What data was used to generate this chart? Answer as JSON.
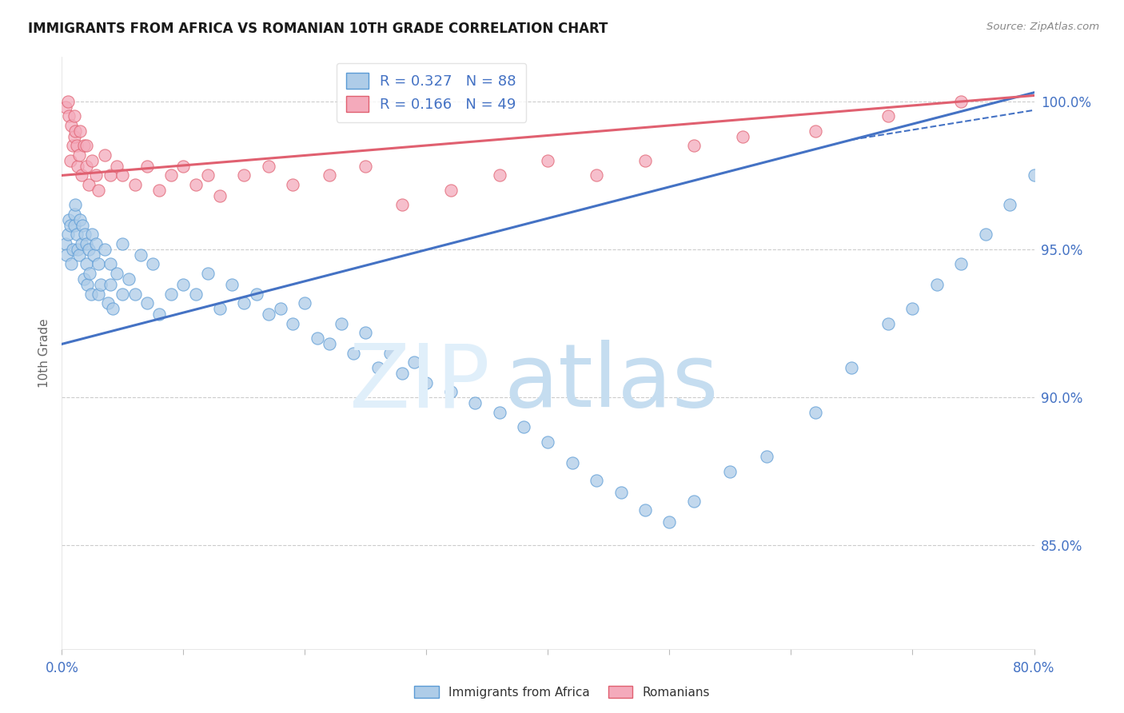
{
  "title": "IMMIGRANTS FROM AFRICA VS ROMANIAN 10TH GRADE CORRELATION CHART",
  "source": "Source: ZipAtlas.com",
  "ylabel": "10th Grade",
  "xlim": [
    0.0,
    80.0
  ],
  "ylim": [
    81.5,
    101.5
  ],
  "yticks": [
    85.0,
    90.0,
    95.0,
    100.0
  ],
  "ytick_labels": [
    "85.0%",
    "90.0%",
    "95.0%",
    "100.0%"
  ],
  "xticks": [
    0.0,
    10.0,
    20.0,
    30.0,
    40.0,
    50.0,
    60.0,
    70.0,
    80.0
  ],
  "xtick_labels": [
    "0.0%",
    "",
    "",
    "",
    "",
    "",
    "",
    "",
    "80.0%"
  ],
  "legend_label1": "Immigrants from Africa",
  "legend_label2": "Romanians",
  "r1": 0.327,
  "n1": 88,
  "r2": 0.166,
  "n2": 49,
  "color_africa_fill": "#AECCE8",
  "color_africa_edge": "#5B9BD5",
  "color_romania_fill": "#F4AABB",
  "color_romania_edge": "#E06070",
  "color_africa_line": "#4472C4",
  "color_romania_line": "#E06070",
  "color_axis_labels": "#4472C4",
  "africa_trend_x0": 0.0,
  "africa_trend_y0": 91.8,
  "africa_trend_x1": 80.0,
  "africa_trend_y1": 100.3,
  "romania_trend_x0": 0.0,
  "romania_trend_y0": 97.5,
  "romania_trend_x1": 80.0,
  "romania_trend_y1": 100.2,
  "africa_scatter_x": [
    0.3,
    0.4,
    0.5,
    0.6,
    0.7,
    0.8,
    0.9,
    1.0,
    1.0,
    1.1,
    1.2,
    1.3,
    1.4,
    1.5,
    1.6,
    1.7,
    1.8,
    1.9,
    2.0,
    2.0,
    2.1,
    2.2,
    2.3,
    2.4,
    2.5,
    2.6,
    2.8,
    3.0,
    3.0,
    3.2,
    3.5,
    3.8,
    4.0,
    4.0,
    4.2,
    4.5,
    5.0,
    5.0,
    5.5,
    6.0,
    6.5,
    7.0,
    7.5,
    8.0,
    9.0,
    10.0,
    11.0,
    12.0,
    13.0,
    14.0,
    15.0,
    16.0,
    17.0,
    18.0,
    19.0,
    20.0,
    21.0,
    22.0,
    23.0,
    24.0,
    25.0,
    26.0,
    27.0,
    28.0,
    29.0,
    30.0,
    32.0,
    34.0,
    36.0,
    38.0,
    40.0,
    42.0,
    44.0,
    46.0,
    48.0,
    50.0,
    52.0,
    55.0,
    58.0,
    62.0,
    65.0,
    68.0,
    70.0,
    72.0,
    74.0,
    76.0,
    78.0,
    80.0
  ],
  "africa_scatter_y": [
    95.2,
    94.8,
    95.5,
    96.0,
    95.8,
    94.5,
    95.0,
    96.2,
    95.8,
    96.5,
    95.5,
    95.0,
    94.8,
    96.0,
    95.2,
    95.8,
    94.0,
    95.5,
    95.2,
    94.5,
    93.8,
    95.0,
    94.2,
    93.5,
    95.5,
    94.8,
    95.2,
    93.5,
    94.5,
    93.8,
    95.0,
    93.2,
    93.8,
    94.5,
    93.0,
    94.2,
    93.5,
    95.2,
    94.0,
    93.5,
    94.8,
    93.2,
    94.5,
    92.8,
    93.5,
    93.8,
    93.5,
    94.2,
    93.0,
    93.8,
    93.2,
    93.5,
    92.8,
    93.0,
    92.5,
    93.2,
    92.0,
    91.8,
    92.5,
    91.5,
    92.2,
    91.0,
    91.5,
    90.8,
    91.2,
    90.5,
    90.2,
    89.8,
    89.5,
    89.0,
    88.5,
    87.8,
    87.2,
    86.8,
    86.2,
    85.8,
    86.5,
    87.5,
    88.0,
    89.5,
    91.0,
    92.5,
    93.0,
    93.8,
    94.5,
    95.5,
    96.5,
    97.5
  ],
  "romania_scatter_x": [
    0.3,
    0.5,
    0.6,
    0.7,
    0.8,
    0.9,
    1.0,
    1.0,
    1.1,
    1.2,
    1.3,
    1.4,
    1.5,
    1.6,
    1.8,
    2.0,
    2.0,
    2.2,
    2.5,
    2.8,
    3.0,
    3.5,
    4.0,
    4.5,
    5.0,
    6.0,
    7.0,
    8.0,
    9.0,
    10.0,
    11.0,
    12.0,
    13.0,
    15.0,
    17.0,
    19.0,
    22.0,
    25.0,
    28.0,
    32.0,
    36.0,
    40.0,
    44.0,
    48.0,
    52.0,
    56.0,
    62.0,
    68.0,
    74.0
  ],
  "romania_scatter_y": [
    99.8,
    100.0,
    99.5,
    98.0,
    99.2,
    98.5,
    99.5,
    98.8,
    99.0,
    98.5,
    97.8,
    98.2,
    99.0,
    97.5,
    98.5,
    97.8,
    98.5,
    97.2,
    98.0,
    97.5,
    97.0,
    98.2,
    97.5,
    97.8,
    97.5,
    97.2,
    97.8,
    97.0,
    97.5,
    97.8,
    97.2,
    97.5,
    96.8,
    97.5,
    97.8,
    97.2,
    97.5,
    97.8,
    96.5,
    97.0,
    97.5,
    98.0,
    97.5,
    98.0,
    98.5,
    98.8,
    99.0,
    99.5,
    100.0
  ]
}
